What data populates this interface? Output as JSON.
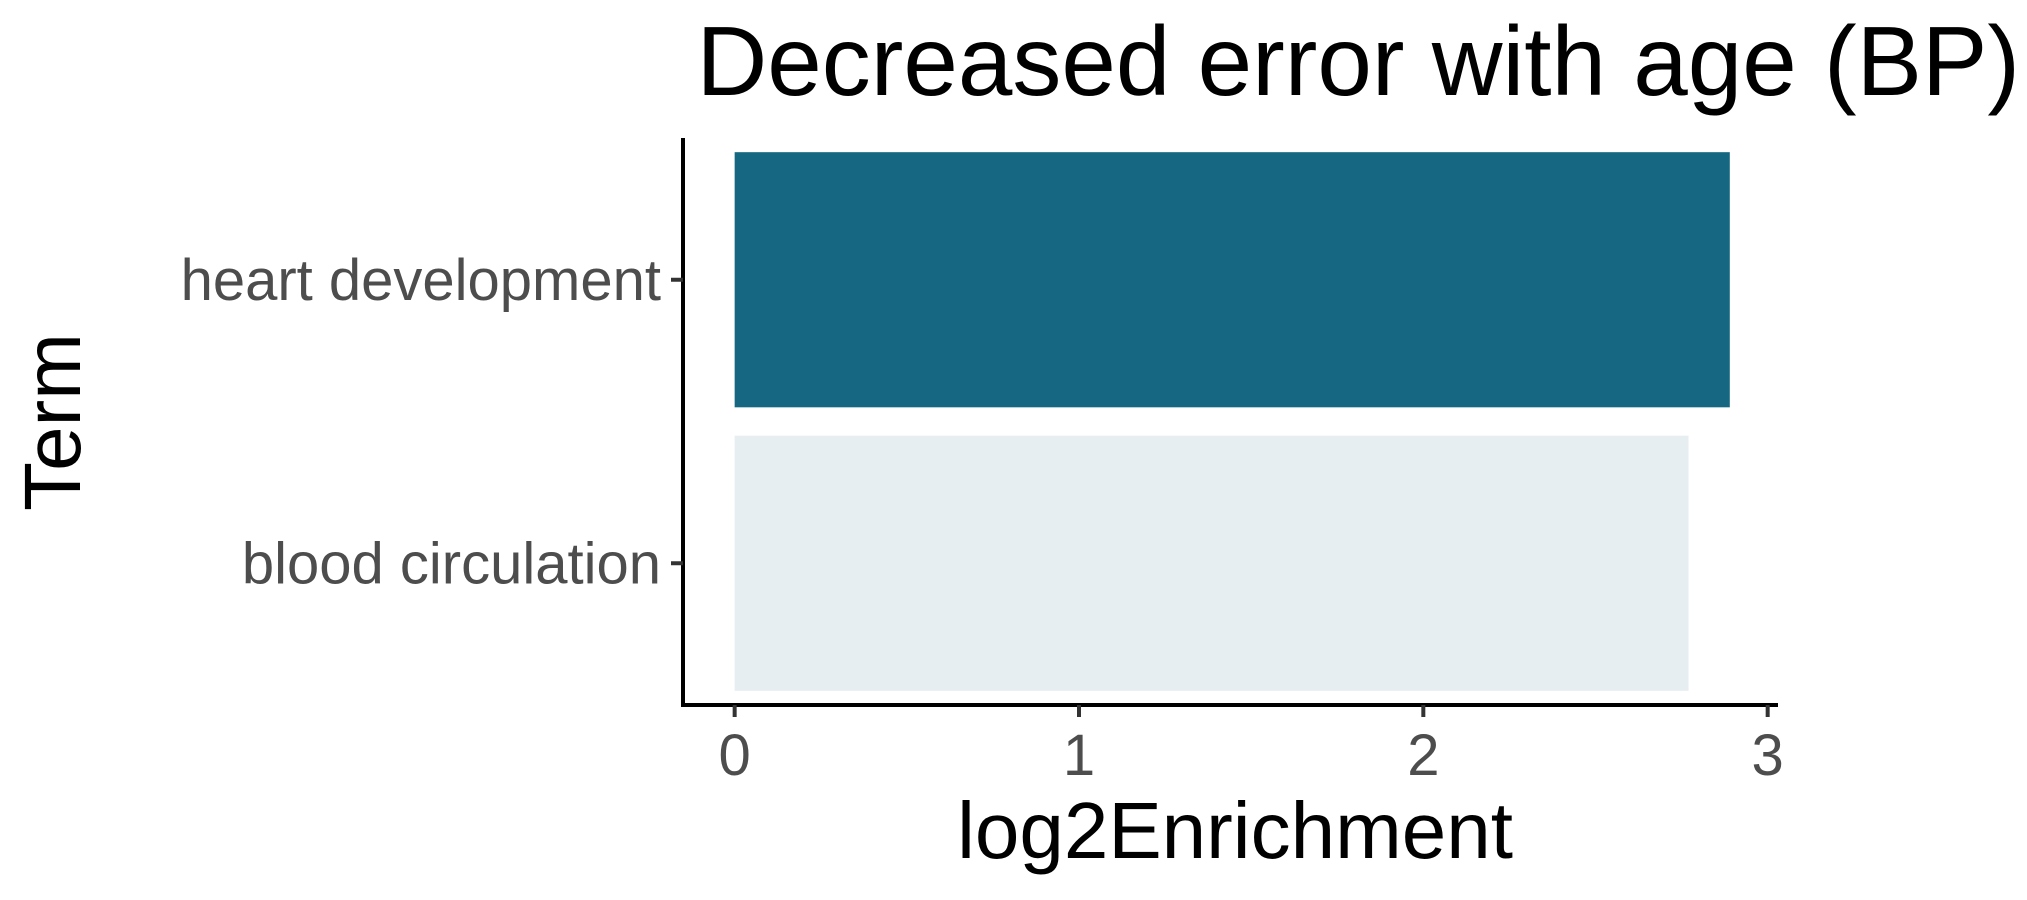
{
  "chart_data": {
    "type": "bar",
    "orientation": "horizontal",
    "title": "Decreased error with age (BP)",
    "xlabel": "log2Enrichment",
    "ylabel": "Term",
    "categories": [
      "heart development",
      "blood circulation"
    ],
    "values": [
      2.89,
      2.77
    ],
    "bar_colors": [
      "#156782",
      "#e6eef1"
    ],
    "xlim": [
      -0.15,
      3.03
    ],
    "xticks": [
      0,
      1,
      2,
      3
    ],
    "xtick_labels": [
      "0",
      "1",
      "2",
      "3"
    ],
    "grid": false,
    "legend": "none"
  }
}
